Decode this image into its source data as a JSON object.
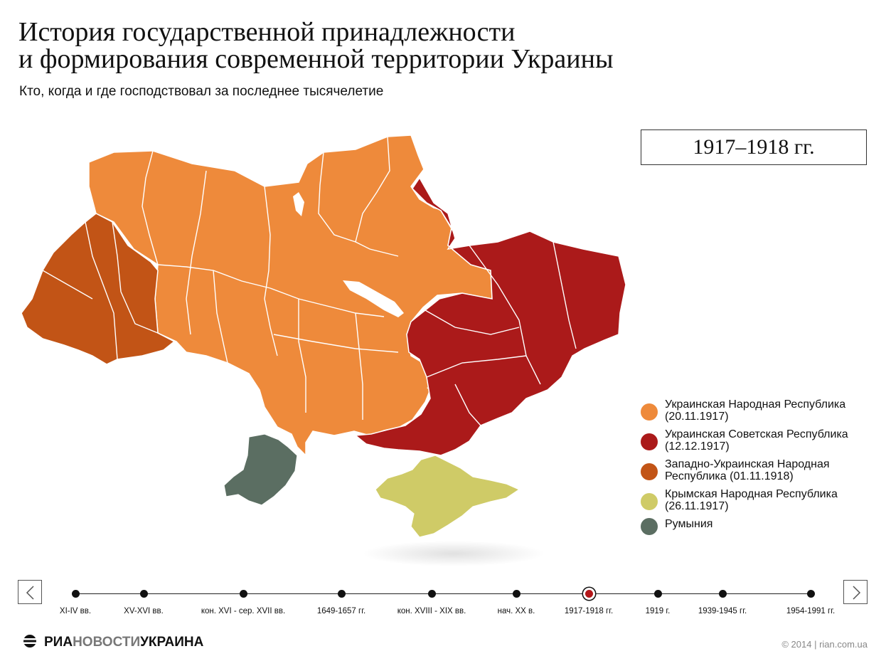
{
  "header": {
    "title_line1": "История государственной принадлежности",
    "title_line2": "и формирования современной территории Украины",
    "subtitle": "Кто, когда и где господствовал за последнее тысячелетие"
  },
  "period_label": "1917–1918 гг.",
  "colors": {
    "unr": "#ee8a3b",
    "usr": "#ab1a1a",
    "zunr": "#c25416",
    "crimea": "#cfcb67",
    "romania": "#5b6e62",
    "active_dot": "#b3171a"
  },
  "legend": [
    {
      "label": "Украинская Народная Республика (20.11.1917)",
      "color": "#ee8a3b"
    },
    {
      "label": "Украинская Советская Республика (12.12.1917)",
      "color": "#ab1a1a"
    },
    {
      "label": "Западно-Украинская Народная Республика (01.11.1918)",
      "color": "#c25416"
    },
    {
      "label": "Крымская Народная Республика (26.11.1917)",
      "color": "#cfcb67"
    },
    {
      "label": "Румыния",
      "color": "#5b6e62"
    }
  ],
  "timeline": [
    {
      "label": "XI-IV вв."
    },
    {
      "label": "XV-XVI вв."
    },
    {
      "label": "кон. XVI - сер. XVII вв."
    },
    {
      "label": "1649-1657 гг."
    },
    {
      "label": "кон. XVIII - XIX вв."
    },
    {
      "label": "нач. XX в."
    },
    {
      "label": "1917-1918 гг.",
      "active": true
    },
    {
      "label": "1919 г."
    },
    {
      "label": "1939-1945 гг."
    },
    {
      "label": "1954-1991 гг."
    }
  ],
  "nav": {
    "prev_icon": "chevron-left-icon",
    "next_icon": "chevron-right-icon"
  },
  "footer": {
    "logo_part1": "РИА",
    "logo_part2": "НОВОСТИ",
    "logo_part3": "УКРАИНА",
    "copyright": "© 2014 | rian.com.ua"
  }
}
